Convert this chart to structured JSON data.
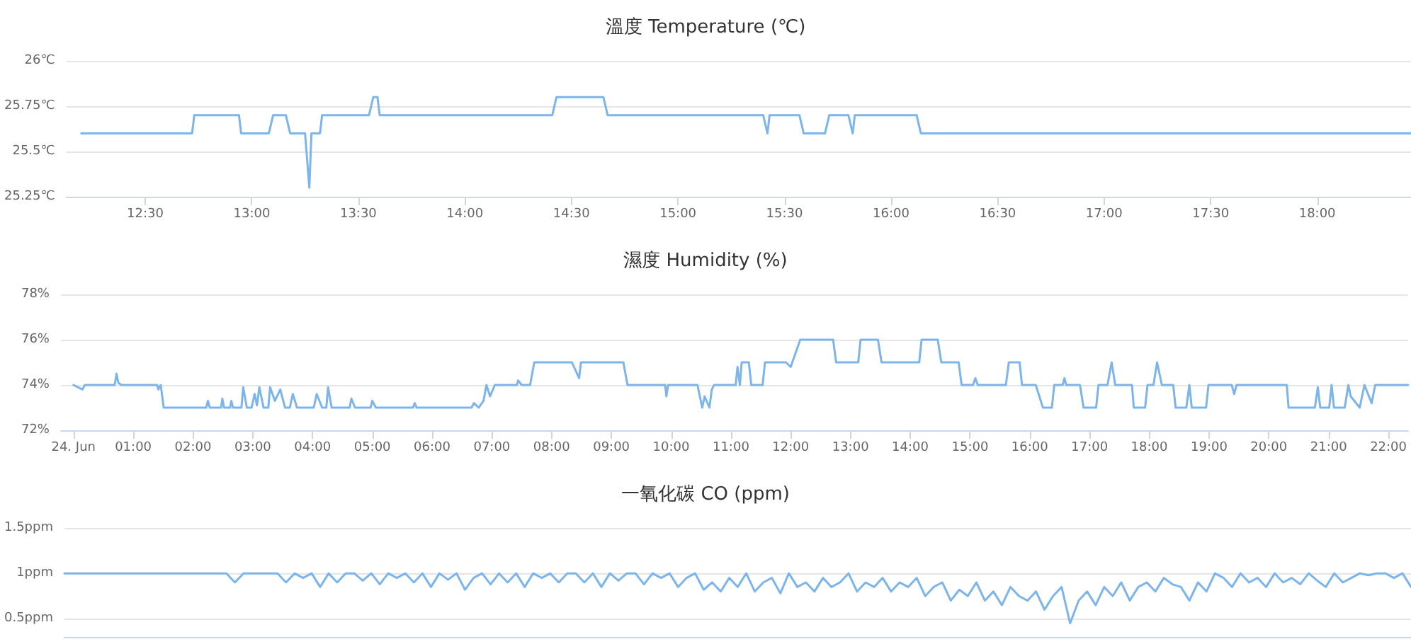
{
  "chart_data": [
    {
      "type": "line",
      "title": "溫度 Temperature (℃)",
      "grid": "y",
      "marker": "none",
      "line_style": "solid",
      "xlim": [
        12.13,
        18.44
      ],
      "xticks": [
        {
          "value": 12.5,
          "label": "12:30"
        },
        {
          "value": 13,
          "label": "13:00"
        },
        {
          "value": 13.5,
          "label": "13:30"
        },
        {
          "value": 14,
          "label": "14:00"
        },
        {
          "value": 14.5,
          "label": "14:30"
        },
        {
          "value": 15,
          "label": "15:00"
        },
        {
          "value": 15.5,
          "label": "15:30"
        },
        {
          "value": 16,
          "label": "16:00"
        },
        {
          "value": 16.5,
          "label": "16:30"
        },
        {
          "value": 17,
          "label": "17:00"
        },
        {
          "value": 17.5,
          "label": "17:30"
        },
        {
          "value": 18,
          "label": "18:00"
        }
      ],
      "ylim": [
        25.25,
        26
      ],
      "yticks": [
        {
          "value": 25.25,
          "label": "25.25℃"
        },
        {
          "value": 25.5,
          "label": "25.5℃"
        },
        {
          "value": 25.75,
          "label": "25.75℃"
        },
        {
          "value": 26,
          "label": "26℃"
        }
      ],
      "series": [
        {
          "color": "#7cb5ec",
          "x": [
            12.2,
            12.72,
            12.73,
            12.94,
            12.95,
            13.08,
            13.1,
            13.16,
            13.18,
            13.25,
            13.27,
            13.28,
            13.32,
            13.33,
            13.55,
            13.57,
            13.59,
            13.6,
            14.41,
            14.43,
            14.65,
            14.67,
            15.4,
            15.42,
            15.43,
            15.57,
            15.59,
            15.69,
            15.71,
            15.8,
            15.82,
            15.83,
            16.12,
            16.14,
            18.44
          ],
          "values": [
            25.6,
            25.6,
            25.7,
            25.7,
            25.6,
            25.6,
            25.7,
            25.7,
            25.6,
            25.6,
            25.3,
            25.6,
            25.6,
            25.7,
            25.7,
            25.8,
            25.8,
            25.7,
            25.7,
            25.8,
            25.8,
            25.7,
            25.7,
            25.6,
            25.7,
            25.7,
            25.6,
            25.6,
            25.7,
            25.7,
            25.6,
            25.7,
            25.7,
            25.6,
            25.6
          ]
        }
      ]
    },
    {
      "type": "line",
      "title": "濕度 Humidity (%)",
      "grid": "y",
      "marker": "none",
      "line_style": "solid",
      "xlim": [
        -0.21,
        22.33
      ],
      "xticks": [
        {
          "value": 0,
          "label": "24. Jun"
        },
        {
          "value": 1,
          "label": "01:00"
        },
        {
          "value": 2,
          "label": "02:00"
        },
        {
          "value": 3,
          "label": "03:00"
        },
        {
          "value": 4,
          "label": "04:00"
        },
        {
          "value": 5,
          "label": "05:00"
        },
        {
          "value": 6,
          "label": "06:00"
        },
        {
          "value": 7,
          "label": "07:00"
        },
        {
          "value": 8,
          "label": "08:00"
        },
        {
          "value": 9,
          "label": "09:00"
        },
        {
          "value": 10,
          "label": "10:00"
        },
        {
          "value": 11,
          "label": "11:00"
        },
        {
          "value": 12,
          "label": "12:00"
        },
        {
          "value": 13,
          "label": "13:00"
        },
        {
          "value": 14,
          "label": "14:00"
        },
        {
          "value": 15,
          "label": "15:00"
        },
        {
          "value": 16,
          "label": "16:00"
        },
        {
          "value": 17,
          "label": "17:00"
        },
        {
          "value": 18,
          "label": "18:00"
        },
        {
          "value": 19,
          "label": "19:00"
        },
        {
          "value": 20,
          "label": "20:00"
        },
        {
          "value": 21,
          "label": "21:00"
        },
        {
          "value": 22,
          "label": "22:00"
        }
      ],
      "ylim": [
        72,
        78
      ],
      "yticks": [
        {
          "value": 72,
          "label": "72%"
        },
        {
          "value": 74,
          "label": "74%"
        },
        {
          "value": 76,
          "label": "76%"
        },
        {
          "value": 78,
          "label": "78%"
        }
      ],
      "series": [
        {
          "color": "#7cb5ec",
          "x": [
            0,
            0.15,
            0.19,
            0.69,
            0.72,
            0.75,
            0.8,
            1.4,
            1.42,
            1.46,
            1.51,
            2.22,
            2.25,
            2.28,
            2.47,
            2.49,
            2.52,
            2.62,
            2.64,
            2.67,
            2.81,
            2.84,
            2.9,
            2.98,
            3.03,
            3.07,
            3.11,
            3.18,
            3.26,
            3.29,
            3.37,
            3.46,
            3.54,
            3.62,
            3.67,
            3.74,
            4.02,
            4.07,
            4.16,
            4.23,
            4.26,
            4.32,
            4.62,
            4.65,
            4.71,
            4.97,
            5.0,
            5.06,
            5.68,
            5.71,
            5.74,
            6.66,
            6.7,
            6.78,
            6.86,
            6.91,
            6.97,
            7.05,
            7.42,
            7.44,
            7.5,
            7.64,
            7.71,
            8.34,
            8.46,
            8.49,
            9.2,
            9.27,
            9.9,
            9.92,
            9.95,
            10.44,
            10.52,
            10.56,
            10.64,
            10.68,
            10.72,
            11.08,
            11.11,
            11.15,
            11.18,
            11.3,
            11.34,
            11.53,
            11.57,
            11.92,
            12.0,
            12.16,
            12.71,
            12.76,
            13.13,
            13.17,
            13.46,
            13.52,
            14.15,
            14.19,
            14.46,
            14.52,
            14.81,
            14.86,
            15.05,
            15.09,
            15.13,
            15.6,
            15.65,
            15.83,
            15.87,
            16.1,
            16.22,
            16.37,
            16.41,
            16.55,
            16.58,
            16.61,
            16.84,
            16.9,
            17.11,
            17.15,
            17.3,
            17.37,
            17.43,
            17.71,
            17.74,
            17.93,
            17.97,
            18.07,
            18.13,
            18.21,
            18.4,
            18.44,
            18.62,
            18.67,
            18.71,
            18.95,
            18.99,
            19.38,
            19.42,
            19.46,
            20.3,
            20.33,
            20.77,
            20.82,
            20.86,
            21.01,
            21.05,
            21.09,
            21.27,
            21.33,
            21.37,
            21.52,
            21.6,
            21.72,
            21.78,
            22.33
          ],
          "values": [
            74,
            73.8,
            74,
            74,
            74.5,
            74.1,
            74,
            74,
            73.8,
            74,
            73,
            73,
            73.3,
            73,
            73,
            73.4,
            73,
            73,
            73.3,
            73,
            73,
            73.9,
            73,
            73,
            73.6,
            73.1,
            73.9,
            73,
            73,
            73.9,
            73.3,
            73.8,
            73,
            73,
            73.6,
            73,
            73,
            73.6,
            73,
            73,
            73.9,
            73,
            73,
            73.4,
            73,
            73,
            73.3,
            73,
            73,
            73.2,
            73,
            73,
            73.2,
            73,
            73.3,
            74,
            73.5,
            74,
            74,
            74.2,
            74,
            74,
            75,
            75,
            74.3,
            75,
            75,
            74,
            74,
            73.5,
            74,
            74,
            73,
            73.5,
            73,
            73.8,
            74,
            74,
            74.8,
            74,
            75,
            75,
            74,
            74,
            75,
            75,
            74.8,
            76,
            76,
            75,
            75,
            76,
            76,
            75,
            75,
            76,
            76,
            75,
            75,
            74,
            74,
            74.3,
            74,
            74,
            75,
            75,
            74,
            74,
            73,
            73,
            74,
            74,
            74.3,
            74,
            74,
            73,
            73,
            74,
            74,
            75,
            74,
            74,
            73,
            73,
            74,
            74,
            75,
            74,
            74,
            73,
            73,
            74,
            73,
            73,
            74,
            74,
            73.6,
            74,
            74,
            73,
            73,
            73.9,
            73,
            73,
            74,
            73,
            73,
            74,
            73.5,
            73,
            74,
            73.2,
            74,
            74
          ]
        }
      ]
    },
    {
      "type": "line",
      "title": "一氧化碳 CO (ppm)",
      "grid": "y",
      "marker": "none",
      "line_style": "solid",
      "tick_labels": "y",
      "categories": [
        null,
        null,
        null,
        null,
        null,
        null,
        null,
        null,
        null,
        null,
        null,
        null,
        null,
        null,
        null,
        null,
        null,
        null,
        null,
        null,
        null,
        null,
        null,
        null,
        null,
        null,
        null,
        null,
        null,
        null,
        null,
        null,
        null,
        null,
        null,
        null,
        null,
        null,
        null,
        null,
        null,
        null,
        null,
        null,
        null,
        null,
        null,
        null,
        null,
        null,
        null,
        null,
        null,
        null,
        null,
        null,
        null,
        null,
        null,
        null,
        null,
        null,
        null,
        null,
        null,
        null,
        null,
        null,
        null,
        null,
        null,
        null,
        null,
        null,
        null,
        null,
        null,
        null,
        null,
        null,
        null,
        null,
        null,
        null,
        null,
        null,
        null,
        null,
        null,
        null,
        null,
        null,
        null,
        null,
        null,
        null,
        null,
        null,
        null,
        null,
        null,
        null,
        null,
        null,
        null,
        null,
        null,
        null,
        null,
        null,
        null,
        null,
        null,
        null,
        null,
        null,
        null,
        null,
        null,
        null,
        null,
        null,
        null,
        null,
        null,
        null,
        null,
        null,
        null,
        null,
        null,
        null,
        null,
        null,
        null,
        null,
        null,
        null,
        null,
        null,
        null,
        null,
        null,
        null,
        null,
        null,
        null,
        null,
        null,
        null,
        null,
        null,
        null,
        null,
        null,
        null,
        null,
        null,
        null
      ],
      "ylim": [
        0.3,
        1.5
      ],
      "yticks": [
        {
          "value": 0.5,
          "label": "0.5ppm"
        },
        {
          "value": 1,
          "label": "1ppm"
        },
        {
          "value": 1.5,
          "label": "1.5ppm"
        }
      ],
      "series": [
        {
          "color": "#7cb5ec",
          "values": [
            1,
            1,
            1,
            1,
            1,
            1,
            1,
            1,
            1,
            1,
            1,
            1,
            1,
            1,
            1,
            1,
            1,
            1,
            1,
            1,
            0.9,
            1,
            1,
            1,
            1,
            1,
            0.9,
            1,
            0.95,
            1,
            0.85,
            1,
            0.9,
            1,
            1,
            0.92,
            1,
            0.88,
            1,
            0.95,
            1,
            0.9,
            1,
            0.85,
            1,
            0.93,
            1,
            0.82,
            0.95,
            1,
            0.88,
            1,
            0.9,
            1,
            0.85,
            1,
            0.95,
            1,
            0.9,
            1,
            1,
            0.9,
            1,
            0.85,
            1,
            0.92,
            1,
            1,
            0.88,
            1,
            0.95,
            1,
            0.85,
            0.95,
            1,
            0.82,
            0.9,
            0.8,
            0.95,
            0.85,
            1,
            0.8,
            0.9,
            0.95,
            0.78,
            1,
            0.85,
            0.9,
            0.8,
            0.95,
            0.85,
            0.9,
            1,
            0.8,
            0.9,
            0.85,
            0.95,
            0.8,
            0.9,
            0.85,
            0.95,
            0.75,
            0.85,
            0.9,
            0.7,
            0.82,
            0.75,
            0.9,
            0.7,
            0.8,
            0.65,
            0.85,
            0.75,
            0.7,
            0.8,
            0.6,
            0.75,
            0.85,
            0.45,
            0.7,
            0.8,
            0.65,
            0.85,
            0.75,
            0.9,
            0.7,
            0.85,
            0.9,
            0.8,
            0.95,
            0.88,
            0.85,
            0.7,
            0.9,
            0.8,
            1,
            0.95,
            0.85,
            1,
            0.9,
            0.95,
            0.85,
            1,
            0.9,
            0.95,
            0.88,
            1,
            0.92,
            0.85,
            1,
            0.9,
            0.95,
            1,
            0.98,
            1,
            1,
            0.95,
            1,
            0.85
          ]
        }
      ]
    }
  ]
}
